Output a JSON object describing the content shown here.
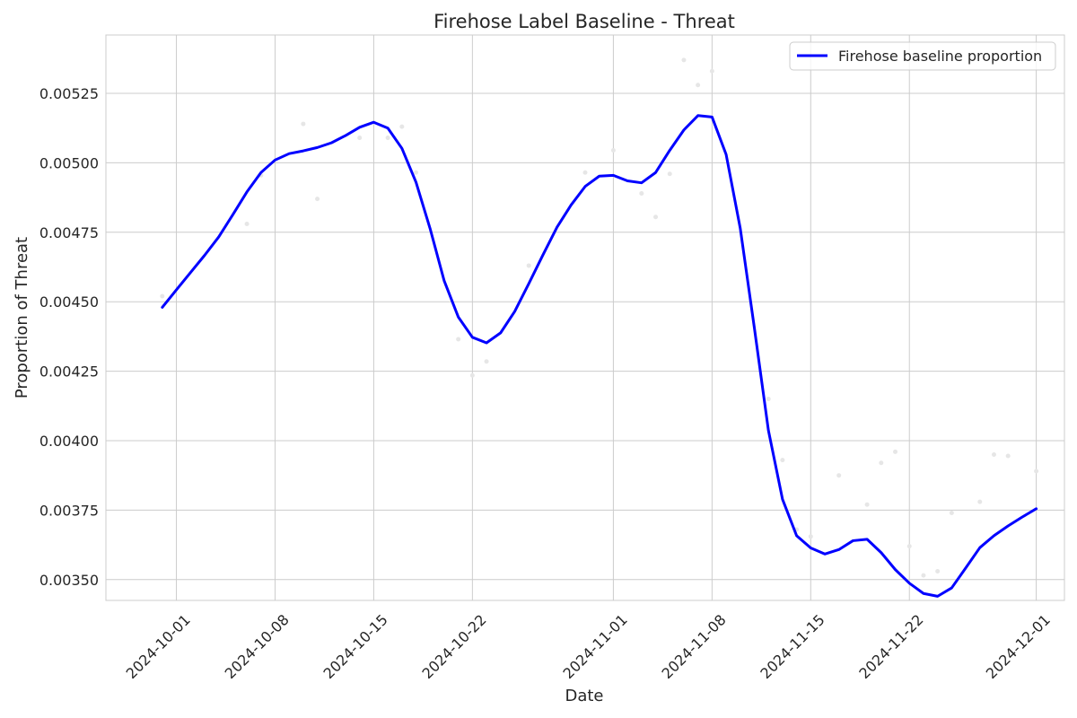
{
  "chart_data": {
    "type": "line",
    "title": "Firehose Label Baseline - Threat",
    "xlabel": "Date",
    "ylabel": "Proportion of Threat",
    "xlim": [
      "2024-09-26",
      "2024-12-03"
    ],
    "ylim": [
      0.003425,
      0.00546
    ],
    "x_tick_labels": [
      "2024-10-01",
      "2024-10-08",
      "2024-10-15",
      "2024-10-22",
      "2024-11-01",
      "2024-11-08",
      "2024-11-15",
      "2024-11-22",
      "2024-12-01"
    ],
    "y_tick_values": [
      0.0035,
      0.00375,
      0.004,
      0.00425,
      0.0045,
      0.00475,
      0.005,
      0.00525
    ],
    "y_tick_labels": [
      "0.00350",
      "0.00375",
      "0.00400",
      "0.00425",
      "0.00450",
      "0.00475",
      "0.00500",
      "0.00525"
    ],
    "grid": true,
    "legend_position": "top-right",
    "series": [
      {
        "name": "Firehose baseline proportion",
        "color": "#0000ff",
        "x": [
          "2024-09-30",
          "2024-10-01",
          "2024-10-02",
          "2024-10-03",
          "2024-10-04",
          "2024-10-05",
          "2024-10-06",
          "2024-10-07",
          "2024-10-08",
          "2024-10-09",
          "2024-10-10",
          "2024-10-11",
          "2024-10-12",
          "2024-10-13",
          "2024-10-14",
          "2024-10-15",
          "2024-10-16",
          "2024-10-17",
          "2024-10-18",
          "2024-10-19",
          "2024-10-20",
          "2024-10-21",
          "2024-10-22",
          "2024-10-23",
          "2024-10-24",
          "2024-10-25",
          "2024-10-26",
          "2024-10-27",
          "2024-10-28",
          "2024-10-29",
          "2024-10-30",
          "2024-10-31",
          "2024-11-01",
          "2024-11-02",
          "2024-11-03",
          "2024-11-04",
          "2024-11-05",
          "2024-11-06",
          "2024-11-07",
          "2024-11-08",
          "2024-11-09",
          "2024-11-10",
          "2024-11-11",
          "2024-11-12",
          "2024-11-13",
          "2024-11-14",
          "2024-11-15",
          "2024-11-16",
          "2024-11-17",
          "2024-11-18",
          "2024-11-19",
          "2024-11-20",
          "2024-11-21",
          "2024-11-22",
          "2024-11-23",
          "2024-11-24",
          "2024-11-25",
          "2024-11-26",
          "2024-11-27",
          "2024-11-28",
          "2024-11-29",
          "2024-11-30",
          "2024-12-01"
        ],
        "values": [
          0.00448,
          0.004543,
          0.004605,
          0.004667,
          0.004733,
          0.004813,
          0.004895,
          0.004965,
          0.00501,
          0.005033,
          0.005043,
          0.005055,
          0.005072,
          0.005098,
          0.005128,
          0.005146,
          0.005125,
          0.005052,
          0.00493,
          0.004763,
          0.004575,
          0.004445,
          0.004372,
          0.004352,
          0.004388,
          0.004465,
          0.004565,
          0.004668,
          0.004768,
          0.004848,
          0.004915,
          0.004952,
          0.004955,
          0.004935,
          0.004928,
          0.004965,
          0.005045,
          0.005118,
          0.00517,
          0.005165,
          0.00503,
          0.004765,
          0.004407,
          0.004037,
          0.003789,
          0.003658,
          0.003614,
          0.003592,
          0.003608,
          0.00364,
          0.003645,
          0.003597,
          0.003536,
          0.003487,
          0.00345,
          0.00344,
          0.00347,
          0.003542,
          0.003615,
          0.003658,
          0.003693,
          0.003725,
          0.003755
        ]
      }
    ],
    "scatter_points": {
      "color": "#e6e6e6",
      "x": [
        "2024-09-30",
        "2024-10-06",
        "2024-10-07",
        "2024-10-10",
        "2024-10-11",
        "2024-10-14",
        "2024-10-16",
        "2024-10-17",
        "2024-10-18",
        "2024-10-21",
        "2024-10-22",
        "2024-10-23",
        "2024-10-26",
        "2024-10-30",
        "2024-11-01",
        "2024-11-03",
        "2024-11-04",
        "2024-11-05",
        "2024-11-06",
        "2024-11-07",
        "2024-11-08",
        "2024-11-12",
        "2024-11-13",
        "2024-11-14",
        "2024-11-15",
        "2024-11-17",
        "2024-11-19",
        "2024-11-20",
        "2024-11-21",
        "2024-11-22",
        "2024-11-23",
        "2024-11-24",
        "2024-11-25",
        "2024-11-27",
        "2024-11-28",
        "2024-11-29",
        "2024-12-01"
      ],
      "values": [
        0.00452,
        0.00478,
        0.004955,
        0.00514,
        0.00487,
        0.00509,
        0.00509,
        0.00513,
        0.004965,
        0.004365,
        0.004235,
        0.004285,
        0.00463,
        0.004965,
        0.005045,
        0.00489,
        0.004805,
        0.00496,
        0.00537,
        0.00528,
        0.00533,
        0.00415,
        0.00393,
        0.00368,
        0.003655,
        0.003875,
        0.00377,
        0.00392,
        0.00396,
        0.00362,
        0.003515,
        0.00353,
        0.00374,
        0.00378,
        0.00395,
        0.003945,
        0.00389
      ]
    }
  }
}
